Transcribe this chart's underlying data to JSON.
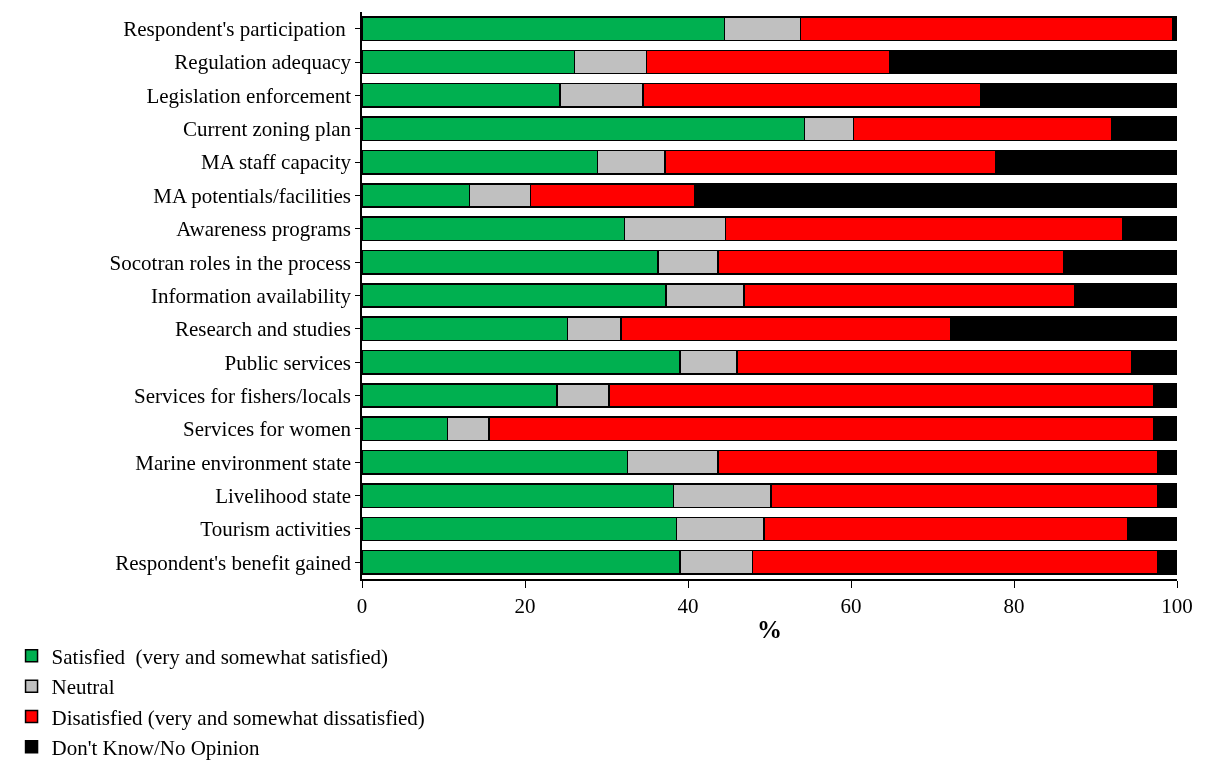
{
  "chart_data": {
    "type": "bar",
    "orientation": "horizontal",
    "stacked": true,
    "xlabel": "%",
    "xlim": [
      0,
      100
    ],
    "xticks": [
      0,
      20,
      40,
      60,
      80,
      100
    ],
    "grid": false,
    "legend": "bottom",
    "categories": [
      "Respondent's participation ",
      "Regulation adequacy",
      "Legislation enforcement",
      "Current zoning plan",
      "MA staff capacity",
      "MA potentials/facilities",
      "Awareness programs",
      "Socotran roles in the process",
      "Information availability",
      "Research and studies",
      "Public services",
      "Services for fishers/locals",
      "Services for women",
      "Marine environment state",
      "Livelihood state",
      "Tourism activities",
      "Respondent's benefit gained"
    ],
    "series": [
      {
        "name": "Satisfied  (very and somewhat satisfied)",
        "color": "#00b050",
        "values": [
          44.5,
          26.1,
          24.3,
          54.3,
          28.9,
          13.2,
          32.2,
          36.3,
          37.3,
          25.2,
          39.0,
          23.9,
          10.5,
          32.6,
          38.2,
          38.6,
          39.0
        ]
      },
      {
        "name": "Neutral",
        "color": "#c0c0c0",
        "values": [
          9.3,
          8.8,
          10.2,
          6.0,
          8.3,
          7.5,
          12.4,
          7.4,
          9.6,
          6.6,
          7.0,
          6.4,
          5.1,
          11.1,
          12.0,
          10.7,
          8.9
        ]
      },
      {
        "name": "Disatisfied (very and somewhat dissatisfied)",
        "color": "#ff0000",
        "values": [
          45.7,
          29.9,
          41.4,
          31.7,
          40.5,
          20.1,
          48.8,
          42.4,
          40.5,
          40.4,
          48.4,
          66.8,
          81.5,
          53.9,
          47.4,
          44.6,
          49.7
        ]
      },
      {
        "name": "Don't Know/No Opinion",
        "color": "#000000",
        "values": [
          0.5,
          35.2,
          24.1,
          8.0,
          22.3,
          59.2,
          6.6,
          13.9,
          12.6,
          27.8,
          5.6,
          2.9,
          2.9,
          2.4,
          2.4,
          6.1,
          2.4
        ]
      }
    ]
  }
}
